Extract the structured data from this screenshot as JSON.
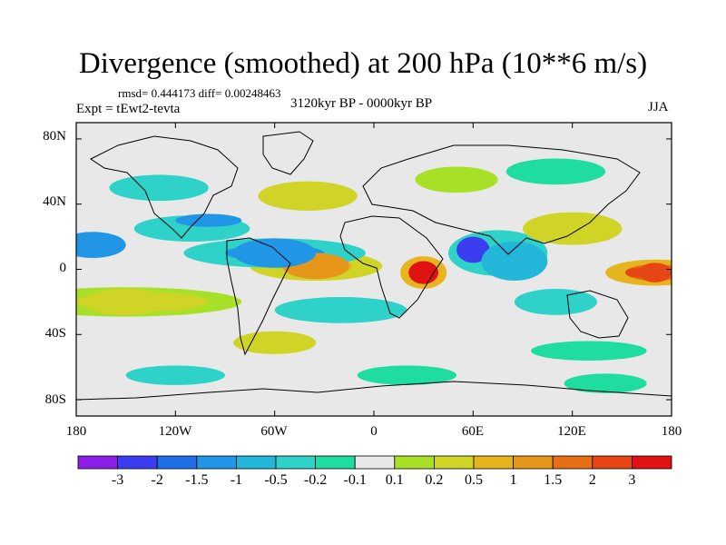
{
  "title": "Divergence (smoothed) at 200 hPa (10**6 m/s)",
  "stats": "rmsd= 0.444173 diff= 0.00248463",
  "expt": "Expt = tEwt2-tevta",
  "period": "3120kyr BP - 0000kyr BP",
  "season": "JJA",
  "y_axis": {
    "labels": [
      "80N",
      "40N",
      "0",
      "40S",
      "80S"
    ],
    "values": [
      80,
      40,
      0,
      -40,
      -80
    ],
    "range": [
      -90,
      90
    ]
  },
  "x_axis": {
    "labels": [
      "180",
      "120W",
      "60W",
      "0",
      "60E",
      "120E",
      "180"
    ],
    "values": [
      -180,
      -120,
      -60,
      0,
      60,
      120,
      180
    ],
    "range": [
      -180,
      180
    ]
  },
  "colorbar": {
    "colors": [
      "#8d1ee8",
      "#3c3cf0",
      "#1f6ee8",
      "#2196e6",
      "#22b6d8",
      "#2ed2c8",
      "#1fdca0",
      "#e8e8e8",
      "#a8e028",
      "#cfd426",
      "#e6b41c",
      "#e69618",
      "#e66e14",
      "#e64614",
      "#e01212"
    ],
    "labels": [
      "-3",
      "-2",
      "-1.5",
      "-1",
      "-0.5",
      "-0.2",
      "-0.1",
      "0.1",
      "0.2",
      "0.5",
      "1",
      "1.5",
      "2",
      "3"
    ]
  },
  "features": [
    {
      "lon": 30,
      "lat": -2,
      "rx": 9,
      "ry": 7,
      "color": "#e01212",
      "name": "red maximum Indian Ocean"
    },
    {
      "lon": 170,
      "lat": -2,
      "rx": 10,
      "ry": 6,
      "color": "#e64614",
      "name": "red maximum west Pacific"
    },
    {
      "lon": -35,
      "lat": 2,
      "rx": 20,
      "ry": 8,
      "color": "#e69618",
      "name": "orange band Atlantic"
    },
    {
      "lon": -150,
      "lat": -20,
      "rx": 25,
      "ry": 8,
      "color": "#cfd426",
      "name": "yellow band south Pacific"
    },
    {
      "lon": -60,
      "lat": 10,
      "rx": 25,
      "ry": 9,
      "color": "#2196e6",
      "name": "blue band tropical Atlantic"
    },
    {
      "lon": 60,
      "lat": 12,
      "rx": 10,
      "ry": 8,
      "color": "#3c3cf0",
      "name": "deep blue Arabian Sea"
    },
    {
      "lon": 85,
      "lat": 5,
      "rx": 20,
      "ry": 12,
      "color": "#22b6d8",
      "name": "cyan band Bay of Bengal"
    }
  ]
}
